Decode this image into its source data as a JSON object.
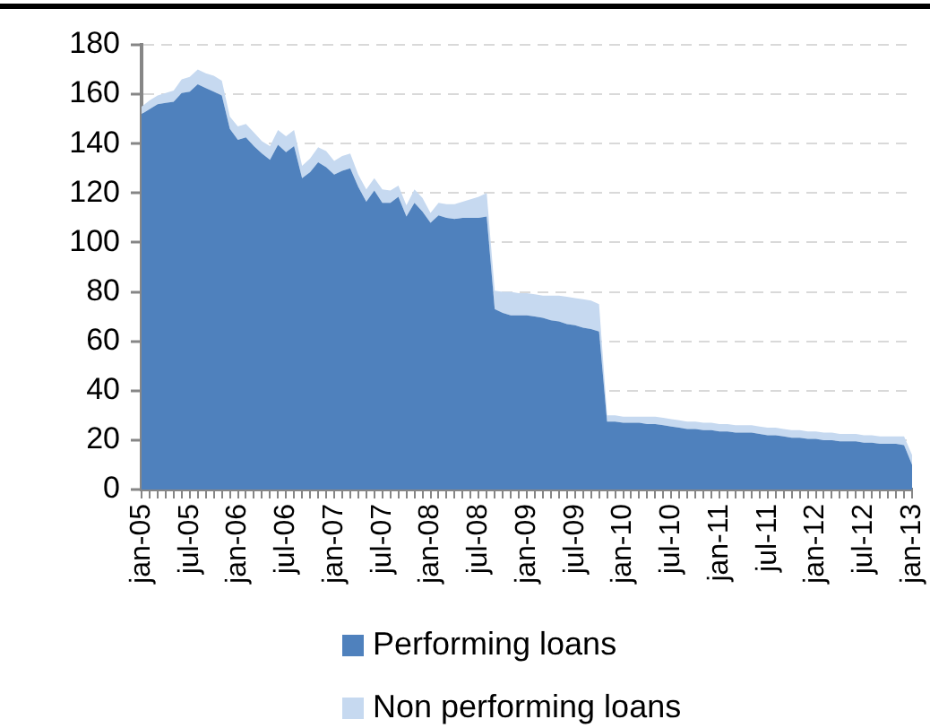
{
  "chart_data": {
    "type": "area",
    "stacked": true,
    "categories": [
      "jan-05",
      null,
      null,
      null,
      null,
      null,
      "jul-05",
      null,
      null,
      null,
      null,
      null,
      "jan-06",
      null,
      null,
      null,
      null,
      null,
      "jul-06",
      null,
      null,
      null,
      null,
      null,
      "jan-07",
      null,
      null,
      null,
      null,
      null,
      "jul-07",
      null,
      null,
      null,
      null,
      null,
      "jan-08",
      null,
      null,
      null,
      null,
      null,
      "jul-08",
      null,
      null,
      null,
      null,
      null,
      "jan-09",
      null,
      null,
      null,
      null,
      null,
      "jul-09",
      null,
      null,
      null,
      null,
      null,
      "jan-10",
      null,
      null,
      null,
      null,
      null,
      "jul-10",
      null,
      null,
      null,
      null,
      null,
      "jan-11",
      null,
      null,
      null,
      null,
      null,
      "jul-11",
      null,
      null,
      null,
      null,
      null,
      "jan-12",
      null,
      null,
      null,
      null,
      null,
      "jul-12",
      null,
      null,
      null,
      null,
      null,
      "jan-13"
    ],
    "series": [
      {
        "name": "Performing loans",
        "color": "#4f81bd",
        "values": [
          152,
          154,
          156,
          156.5,
          157,
          160.5,
          161,
          164,
          162.5,
          161,
          159.5,
          146,
          141.5,
          142.5,
          139,
          136,
          133.5,
          139.5,
          136.5,
          139,
          126,
          128.5,
          132.5,
          130.5,
          127.5,
          129,
          130,
          122.5,
          116.5,
          121,
          116,
          116,
          118.5,
          110.5,
          116,
          112.5,
          108,
          111,
          110,
          109.5,
          110,
          110,
          110,
          110.5,
          73,
          71.5,
          70.5,
          70.5,
          70.5,
          70,
          69.5,
          68.5,
          68,
          67,
          66.5,
          65.5,
          65,
          64,
          27.5,
          27.5,
          27,
          27,
          27,
          26.5,
          26.5,
          26,
          25.5,
          25,
          24.5,
          24.5,
          24,
          24,
          23.5,
          23.5,
          23,
          23,
          23,
          22.5,
          22,
          22,
          21.5,
          21,
          21,
          20.5,
          20.5,
          20,
          20,
          19.5,
          19.5,
          19.5,
          19,
          19,
          18.5,
          18.5,
          18.5,
          18,
          10
        ]
      },
      {
        "name": "Non performing loans",
        "color": "#c6d9f0",
        "values": [
          3,
          3.5,
          3.5,
          4,
          4.5,
          5.5,
          6,
          6,
          6,
          6.5,
          6,
          5,
          5.5,
          5.5,
          5.5,
          5,
          5.5,
          6,
          6.5,
          6.5,
          5,
          5.5,
          6,
          6.5,
          5.5,
          6,
          6,
          5,
          5,
          5,
          5.5,
          5,
          4.5,
          4.5,
          5.5,
          5.5,
          4,
          5,
          5.5,
          6,
          6.5,
          7.5,
          8.5,
          9.5,
          7.5,
          8.5,
          9.5,
          9,
          9,
          9,
          9,
          10,
          10.5,
          11,
          11,
          11.5,
          11.5,
          11,
          2.5,
          2.5,
          2.5,
          2.5,
          2.5,
          3,
          3,
          3,
          3,
          3,
          3,
          3,
          3,
          3,
          3,
          3,
          3,
          3,
          3,
          3,
          3,
          3,
          3,
          3,
          3,
          3,
          3,
          3,
          3,
          3,
          3,
          3,
          3,
          3,
          3,
          3,
          3,
          3.5,
          4
        ]
      }
    ],
    "ylim": [
      0,
      180
    ],
    "yticks": [
      0,
      20,
      40,
      60,
      80,
      100,
      120,
      140,
      160,
      180
    ],
    "grid": "y",
    "legend": "bottom"
  }
}
